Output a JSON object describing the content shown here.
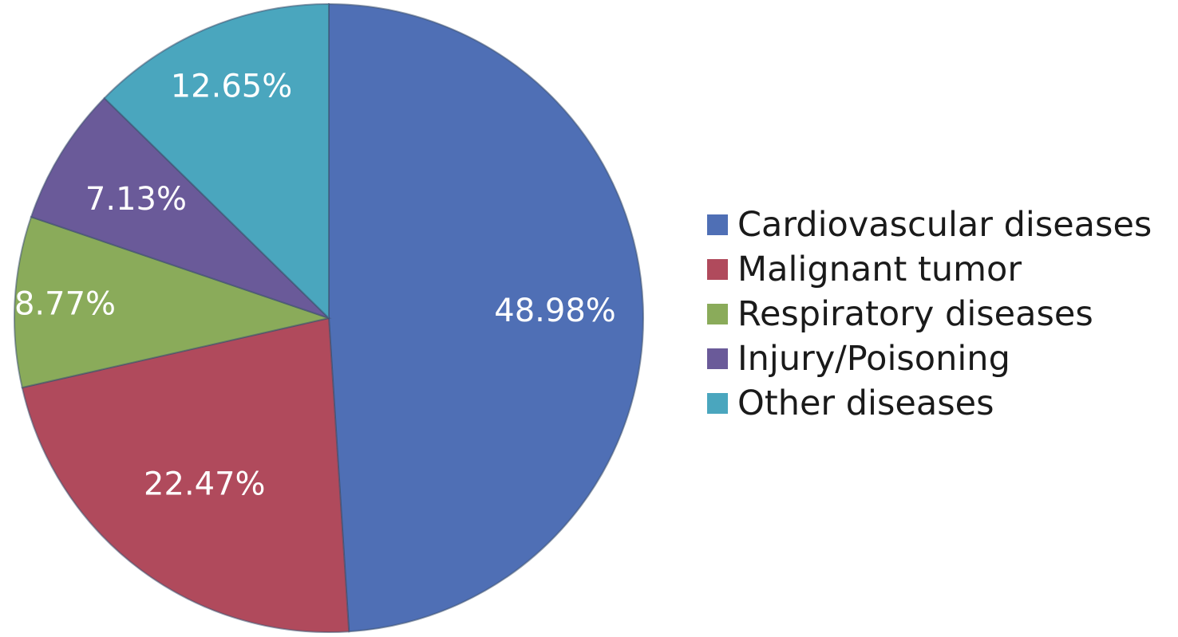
{
  "chart_data": {
    "type": "pie",
    "title": "",
    "start_angle_deg": 0,
    "direction": "clockwise",
    "legend_position": "right",
    "series": [
      {
        "values": [
          48.98,
          22.47,
          8.77,
          7.13,
          12.65
        ],
        "categories": [
          "Cardiovascular diseases",
          "Malignant tumor",
          "Respiratory diseases",
          "Injury/Poisoning",
          "Other diseases"
        ],
        "labels": [
          "48.98%",
          "22.47%",
          "8.77%",
          "7.13%",
          "12.65%"
        ],
        "colors": [
          "#4f6fb5",
          "#b04a5c",
          "#8aab5a",
          "#6a5a99",
          "#4aa6be"
        ]
      }
    ]
  },
  "legend": {
    "items": [
      {
        "label": "Cardiovascular diseases",
        "color": "#4f6fb5"
      },
      {
        "label": "Malignant tumor",
        "color": "#b04a5c"
      },
      {
        "label": "Respiratory diseases",
        "color": "#8aab5a"
      },
      {
        "label": "Injury/Poisoning",
        "color": "#6a5a99"
      },
      {
        "label": "Other diseases",
        "color": "#4aa6be"
      }
    ]
  }
}
